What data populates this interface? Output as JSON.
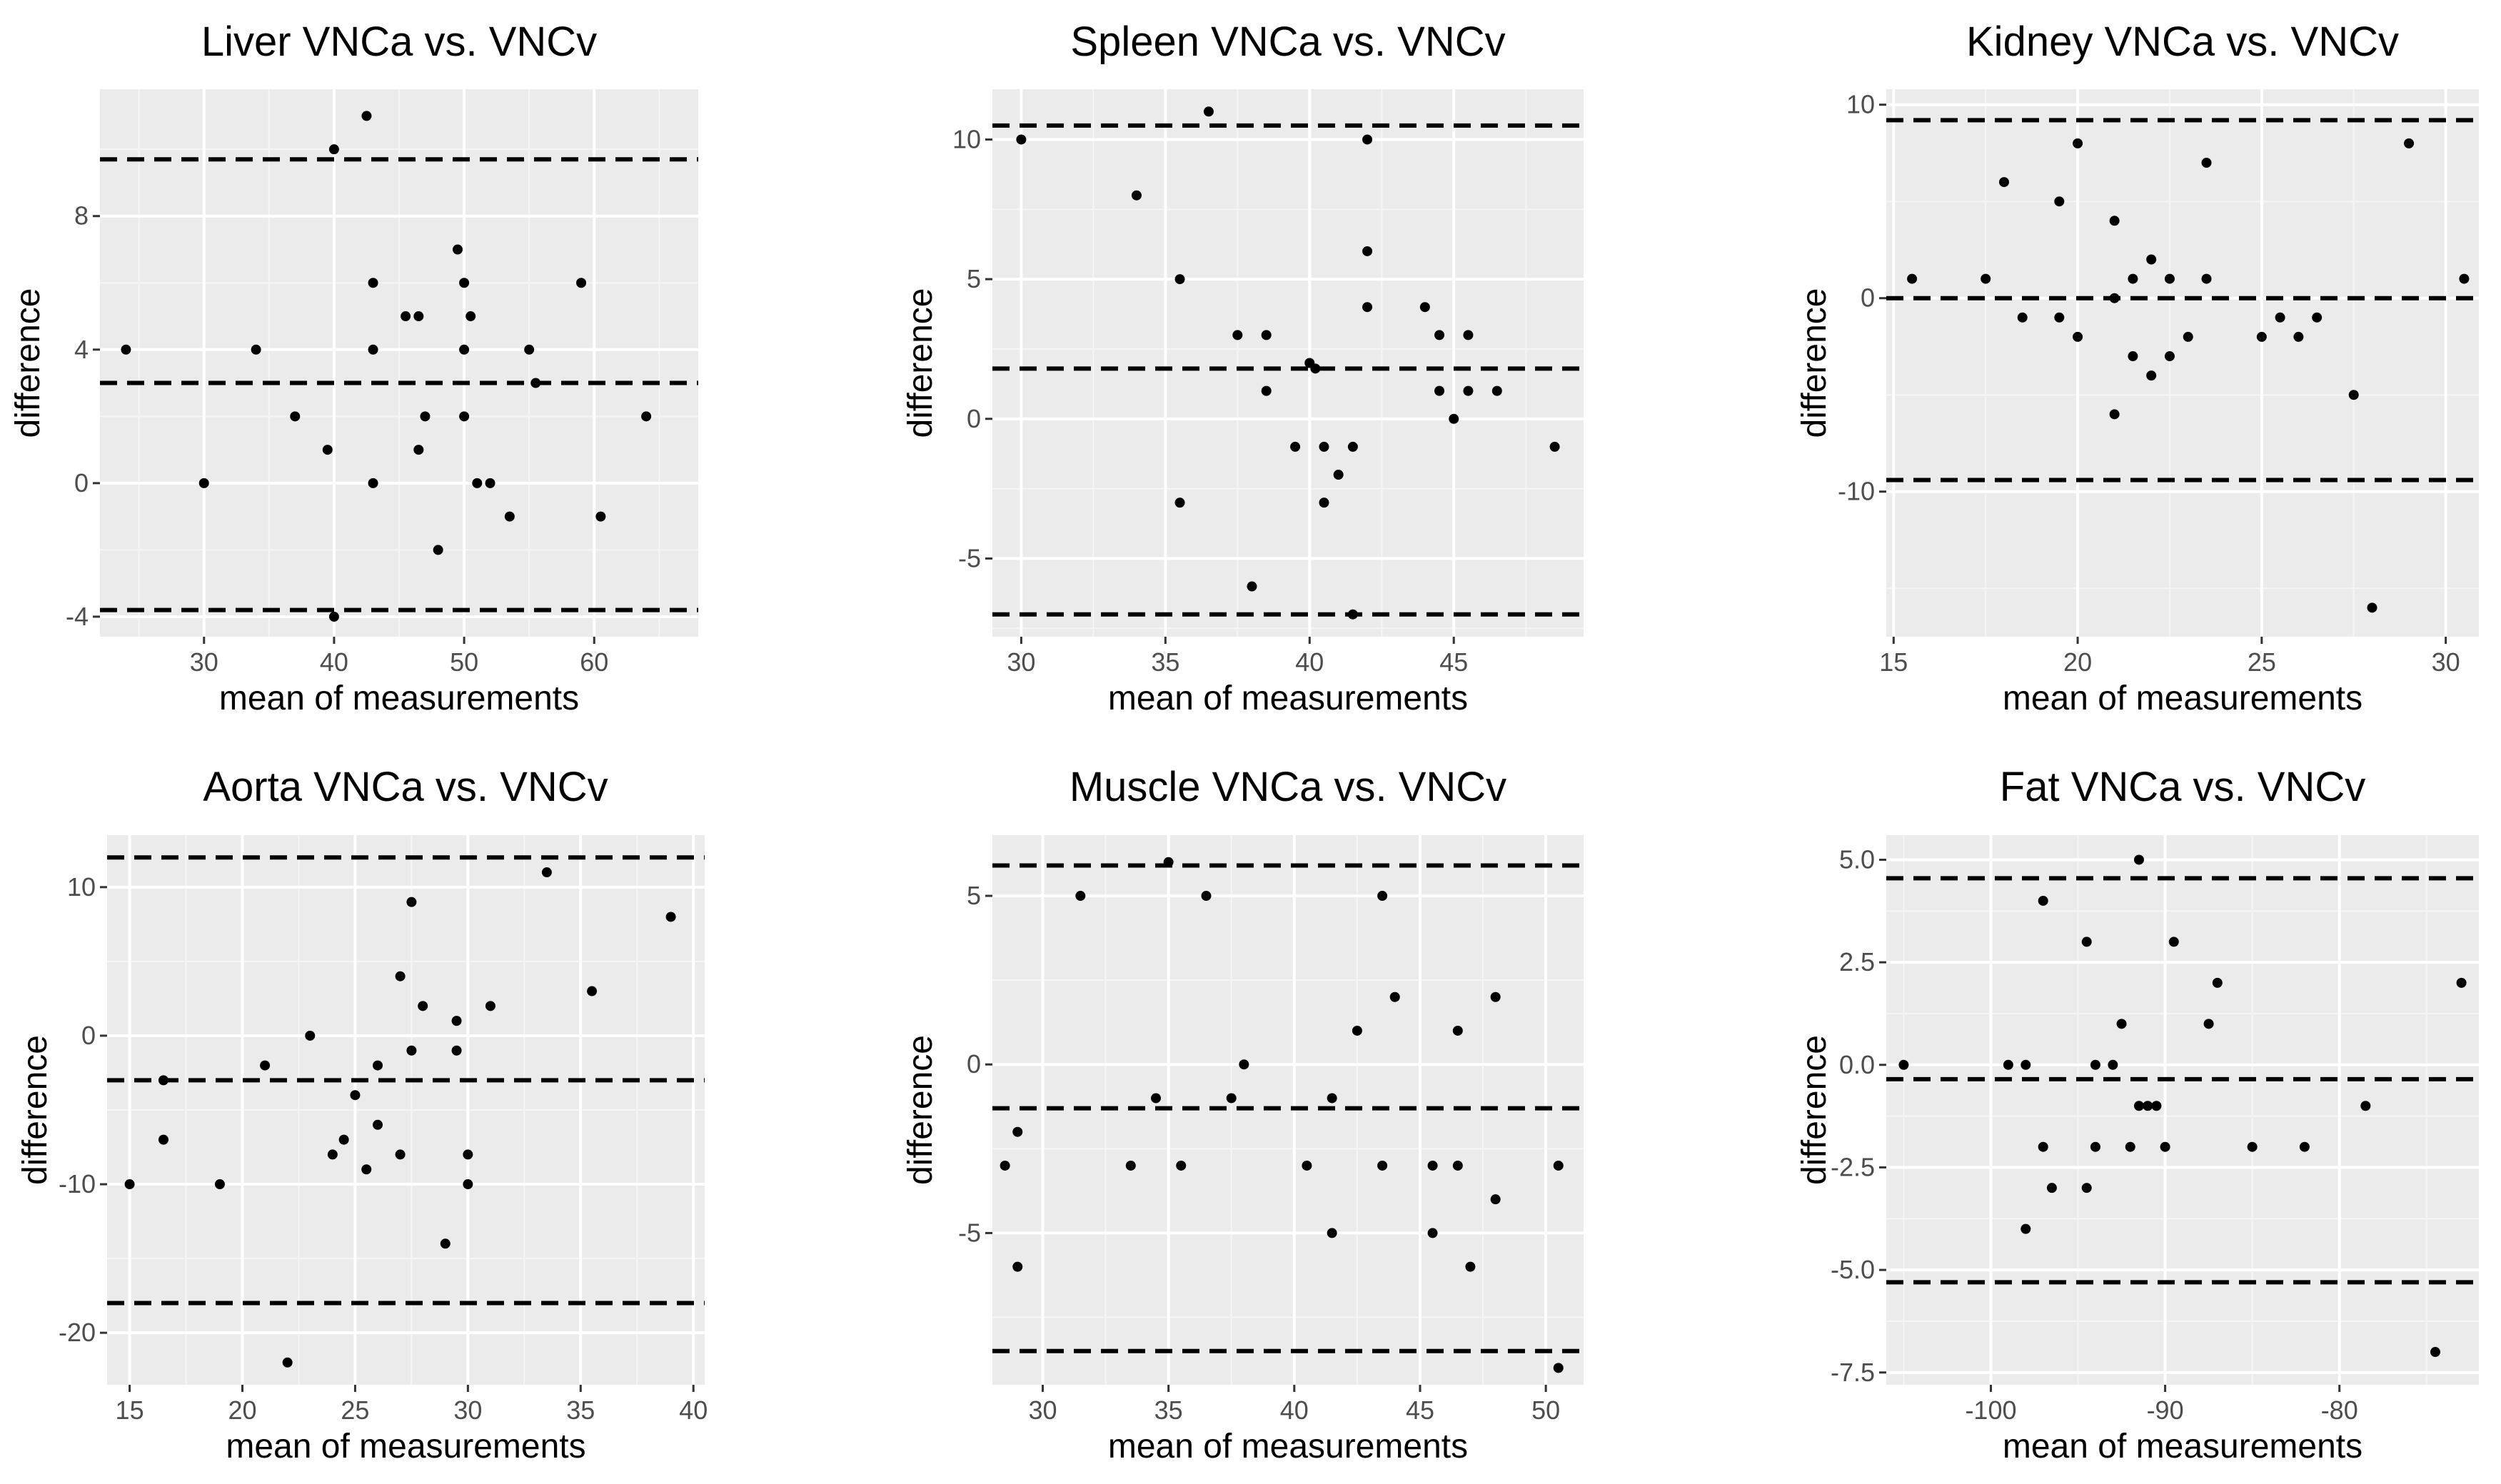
{
  "chart_data": [
    {
      "type": "scatter",
      "title": "Liver VNCa vs. VNCv",
      "xlabel": "mean of measurements",
      "ylabel": "difference",
      "xlim": [
        22,
        68
      ],
      "ylim": [
        -4.6,
        11.8
      ],
      "xticks": [
        30,
        40,
        50,
        60
      ],
      "xtick_labels": [
        "30",
        "40",
        "50",
        "60"
      ],
      "yticks": [
        -4,
        0,
        4,
        8
      ],
      "ytick_labels": [
        "-4",
        "0",
        "4",
        "8"
      ],
      "hlines": [
        9.7,
        3.0,
        -3.8
      ],
      "x": [
        24,
        30,
        34,
        37,
        39.5,
        40,
        40,
        42.5,
        43,
        43,
        43,
        45.5,
        46.5,
        46.5,
        47,
        48,
        49.5,
        50,
        50,
        50,
        50.5,
        51,
        52,
        53.5,
        55,
        55.5,
        59,
        60.5,
        64
      ],
      "y": [
        4,
        0,
        4,
        2,
        1,
        10,
        -4,
        11,
        6,
        4,
        0,
        5,
        5,
        1,
        2,
        -2,
        7,
        6,
        4,
        2,
        5,
        0,
        0,
        -1,
        4,
        3,
        6,
        -1,
        2
      ]
    },
    {
      "type": "scatter",
      "title": "Spleen VNCa vs. VNCv",
      "xlabel": "mean of measurements",
      "ylabel": "difference",
      "xlim": [
        29,
        49.5
      ],
      "ylim": [
        -7.8,
        11.8
      ],
      "xticks": [
        30,
        35,
        40,
        45
      ],
      "xtick_labels": [
        "30",
        "35",
        "40",
        "45"
      ],
      "yticks": [
        -5,
        0,
        5,
        10
      ],
      "ytick_labels": [
        "-5",
        "0",
        "5",
        "10"
      ],
      "hlines": [
        10.5,
        1.8,
        -7.0
      ],
      "x": [
        30,
        34,
        35.5,
        35.5,
        36.5,
        37.5,
        38,
        38.5,
        38.5,
        39.5,
        40,
        40.2,
        40.5,
        40.5,
        41,
        41.5,
        41.5,
        42,
        42,
        42,
        44,
        44.5,
        44.5,
        45,
        45.5,
        45.5,
        46.5,
        48.5
      ],
      "y": [
        10,
        8,
        5,
        -3,
        11,
        3,
        -6,
        3,
        1,
        -1,
        2,
        1.8,
        -1,
        -3,
        -2,
        -1,
        -7,
        10,
        6,
        4,
        4,
        3,
        1,
        0,
        3,
        1,
        1,
        -1
      ]
    },
    {
      "type": "scatter",
      "title": "Kidney VNCa vs. VNCv",
      "xlabel": "mean of measurements",
      "ylabel": "difference",
      "xlim": [
        14.8,
        30.9
      ],
      "ylim": [
        -17.5,
        10.8
      ],
      "xticks": [
        15,
        20,
        25,
        30
      ],
      "xtick_labels": [
        "15",
        "20",
        "25",
        "30"
      ],
      "yticks": [
        -10,
        0,
        10
      ],
      "ytick_labels": [
        "-10",
        "0",
        "10"
      ],
      "hlines": [
        9.2,
        0.0,
        -9.4
      ],
      "x": [
        15.5,
        17.5,
        18,
        18.5,
        19.5,
        19.5,
        20,
        20,
        21,
        21,
        21,
        21.5,
        21.5,
        22,
        22,
        22.5,
        22.5,
        23,
        23.5,
        23.5,
        25,
        25.5,
        26,
        26.5,
        27.5,
        28,
        29,
        30.5
      ],
      "y": [
        1,
        1,
        6,
        -1,
        5,
        -1,
        8,
        -2,
        4,
        0,
        -6,
        1,
        -3,
        2,
        -4,
        1,
        -3,
        -2,
        7,
        1,
        -2,
        -1,
        -2,
        -1,
        -5,
        -16,
        8,
        1
      ]
    },
    {
      "type": "scatter",
      "title": "Aorta VNCa vs. VNCv",
      "xlabel": "mean of measurements",
      "ylabel": "difference",
      "xlim": [
        14,
        40.5
      ],
      "ylim": [
        -23.5,
        13.5
      ],
      "xticks": [
        15,
        20,
        25,
        30,
        35,
        40
      ],
      "xtick_labels": [
        "15",
        "20",
        "25",
        "30",
        "35",
        "40"
      ],
      "yticks": [
        -20,
        -10,
        0,
        10
      ],
      "ytick_labels": [
        "-20",
        "-10",
        "0",
        "10"
      ],
      "hlines": [
        12.0,
        -3.0,
        -18.0
      ],
      "x": [
        15,
        16.5,
        16.5,
        19,
        21,
        22,
        23,
        24,
        24.5,
        25,
        25.5,
        26,
        26,
        27,
        27,
        27.5,
        27.5,
        28,
        29,
        29.5,
        29.5,
        30,
        30,
        31,
        33.5,
        35.5,
        39
      ],
      "y": [
        -10,
        -3,
        -7,
        -10,
        -2,
        -22,
        0,
        -8,
        -7,
        -4,
        -9,
        -2,
        -6,
        4,
        -8,
        9,
        -1,
        2,
        -14,
        1,
        -1,
        -8,
        -10,
        2,
        11,
        3,
        8
      ]
    },
    {
      "type": "scatter",
      "title": "Muscle VNCa vs. VNCv",
      "xlabel": "mean of measurements",
      "ylabel": "difference",
      "xlim": [
        28,
        51.5
      ],
      "ylim": [
        -9.5,
        6.8
      ],
      "xticks": [
        30,
        35,
        40,
        45,
        50
      ],
      "xtick_labels": [
        "30",
        "35",
        "40",
        "45",
        "50"
      ],
      "yticks": [
        -5,
        0,
        5
      ],
      "ytick_labels": [
        "-5",
        "0",
        "5"
      ],
      "hlines": [
        5.9,
        -1.3,
        -8.5
      ],
      "x": [
        28.5,
        29,
        29,
        31.5,
        33.5,
        34.5,
        35,
        35.5,
        36.5,
        37.5,
        38,
        40.5,
        41.5,
        41.5,
        42.5,
        43.5,
        43.5,
        44,
        45.5,
        45.5,
        46.5,
        46.5,
        47,
        48,
        48,
        50.5,
        50.5
      ],
      "y": [
        -3,
        -2,
        -6,
        5,
        -3,
        -1,
        6,
        -3,
        5,
        -1,
        0,
        -3,
        -1,
        -5,
        1,
        5,
        -3,
        2,
        -3,
        -5,
        1,
        -3,
        -6,
        2,
        -4,
        -3,
        -9
      ]
    },
    {
      "type": "scatter",
      "title": "Fat VNCa vs. VNCv",
      "xlabel": "mean of measurements",
      "ylabel": "difference",
      "xlim": [
        -106,
        -72
      ],
      "ylim": [
        -7.8,
        5.6
      ],
      "xticks": [
        -100,
        -90,
        -80
      ],
      "xtick_labels": [
        "-100",
        "-90",
        "-80"
      ],
      "yticks": [
        -7.5,
        -5.0,
        -2.5,
        0.0,
        2.5,
        5.0
      ],
      "ytick_labels": [
        "-7.5",
        "-5.0",
        "-2.5",
        "0.0",
        "2.5",
        "5.0"
      ],
      "hlines": [
        4.55,
        -0.35,
        -5.3
      ],
      "x": [
        -105,
        -99,
        -98,
        -98,
        -97,
        -97,
        -96.5,
        -94.5,
        -94.5,
        -94,
        -94,
        -93,
        -92.5,
        -92,
        -91.5,
        -91.5,
        -91,
        -90.5,
        -90,
        -89.5,
        -87.5,
        -87,
        -85,
        -82,
        -78.5,
        -74.5,
        -73
      ],
      "y": [
        0,
        0,
        0,
        -4,
        4,
        -2,
        -3,
        3,
        -3,
        0,
        -2,
        0,
        1,
        -2,
        5,
        -1,
        -1,
        -1,
        -2,
        3,
        1,
        2,
        -2,
        -2,
        -1,
        -7,
        2
      ]
    }
  ]
}
